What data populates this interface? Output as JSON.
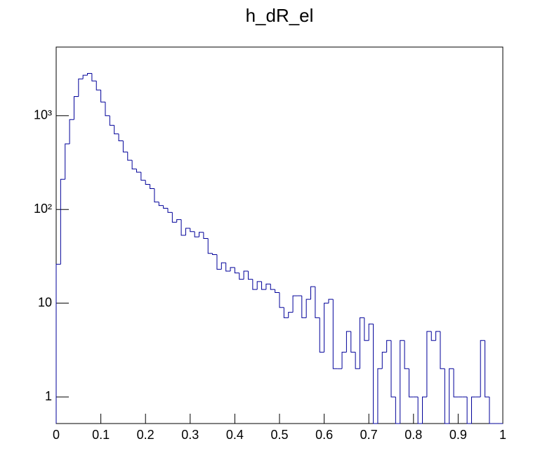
{
  "chart_data": {
    "type": "histogram",
    "title": "h_dR_el",
    "bins": [
      0,
      0.01,
      0.02,
      0.03,
      0.04,
      0.05,
      0.06,
      0.07,
      0.08,
      0.09,
      0.1,
      0.11,
      0.12,
      0.13,
      0.14,
      0.15,
      0.16,
      0.17,
      0.18,
      0.19,
      0.2,
      0.21,
      0.22,
      0.23,
      0.24,
      0.25,
      0.26,
      0.27,
      0.28,
      0.29,
      0.3,
      0.31,
      0.32,
      0.33,
      0.34,
      0.35,
      0.36,
      0.37,
      0.38,
      0.39,
      0.4,
      0.41,
      0.42,
      0.43,
      0.44,
      0.45,
      0.46,
      0.47,
      0.48,
      0.49,
      0.5,
      0.51,
      0.52,
      0.53,
      0.54,
      0.55,
      0.56,
      0.57,
      0.58,
      0.59,
      0.6,
      0.61,
      0.62,
      0.63,
      0.64,
      0.65,
      0.66,
      0.67,
      0.68,
      0.69,
      0.7,
      0.71,
      0.72,
      0.73,
      0.74,
      0.75,
      0.76,
      0.77,
      0.78,
      0.79,
      0.8,
      0.81,
      0.82,
      0.83,
      0.84,
      0.85,
      0.86,
      0.87,
      0.88,
      0.89,
      0.9,
      0.91,
      0.92,
      0.93,
      0.94,
      0.95,
      0.96,
      0.97,
      0.98,
      0.99,
      1
    ],
    "values": [
      26,
      210,
      500,
      910,
      1600,
      2470,
      2700,
      2830,
      2350,
      1880,
      1400,
      1000,
      790,
      640,
      540,
      410,
      335,
      270,
      250,
      205,
      185,
      167,
      120,
      110,
      103,
      93,
      73,
      78,
      53,
      63,
      58,
      51,
      57,
      49,
      34,
      33,
      23,
      27,
      22,
      24,
      21,
      18,
      22,
      18,
      14,
      17,
      14,
      16,
      14,
      13,
      9,
      7,
      8,
      12,
      12,
      7,
      11,
      15,
      7,
      3,
      10,
      11,
      2,
      2,
      3,
      5,
      3,
      2,
      7,
      4,
      6,
      0,
      2,
      3,
      4,
      1,
      0,
      4,
      2,
      1,
      1,
      0,
      1,
      5,
      4,
      5,
      2,
      0,
      2,
      1,
      1,
      1,
      0,
      1,
      1,
      4,
      1,
      0,
      0,
      0
    ],
    "color": "#000099",
    "xlim": [
      0,
      1
    ],
    "xticks": [
      0,
      0.1,
      0.2,
      0.3,
      0.4,
      0.5,
      0.6,
      0.7,
      0.8,
      0.9,
      1
    ],
    "ylim": [
      0.52,
      5400
    ],
    "log_y": true,
    "yticks": [
      1,
      10,
      {
        "value": 100,
        "label": "10²"
      },
      {
        "value": 1000,
        "label": "10³"
      }
    ]
  }
}
